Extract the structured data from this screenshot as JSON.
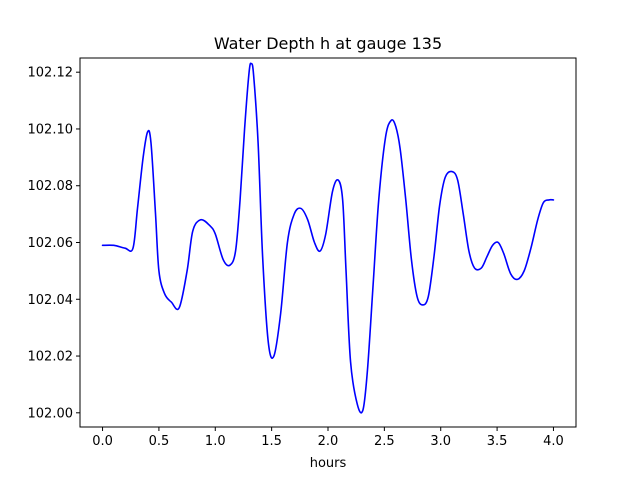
{
  "chart_data": {
    "type": "line",
    "title": "Water Depth h at gauge 135",
    "xlabel": "hours",
    "ylabel": "",
    "xlim": [
      -0.2,
      4.2
    ],
    "ylim": [
      101.995,
      102.125
    ],
    "xticks": [
      0.0,
      0.5,
      1.0,
      1.5,
      2.0,
      2.5,
      3.0,
      3.5,
      4.0
    ],
    "xtick_labels": [
      "0.0",
      "0.5",
      "1.0",
      "1.5",
      "2.0",
      "2.5",
      "3.0",
      "3.5",
      "4.0"
    ],
    "yticks": [
      102.0,
      102.02,
      102.04,
      102.06,
      102.08,
      102.1,
      102.12
    ],
    "ytick_labels": [
      "102.00",
      "102.02",
      "102.04",
      "102.06",
      "102.08",
      "102.10",
      "102.12"
    ],
    "grid": false,
    "series": [
      {
        "color": "#0000ff",
        "x": [
          0.0,
          0.1,
          0.2,
          0.27,
          0.31,
          0.36,
          0.4,
          0.43,
          0.47,
          0.5,
          0.55,
          0.61,
          0.68,
          0.75,
          0.8,
          0.87,
          0.95,
          1.0,
          1.07,
          1.13,
          1.18,
          1.22,
          1.26,
          1.3,
          1.32,
          1.34,
          1.38,
          1.42,
          1.47,
          1.52,
          1.58,
          1.64,
          1.7,
          1.76,
          1.82,
          1.88,
          1.93,
          1.98,
          2.04,
          2.09,
          2.13,
          2.16,
          2.2,
          2.26,
          2.31,
          2.35,
          2.4,
          2.45,
          2.51,
          2.56,
          2.6,
          2.64,
          2.69,
          2.74,
          2.79,
          2.84,
          2.89,
          2.94,
          2.99,
          3.04,
          3.1,
          3.15,
          3.2,
          3.25,
          3.3,
          3.36,
          3.41,
          3.46,
          3.51,
          3.56,
          3.62,
          3.68,
          3.74,
          3.8,
          3.86,
          3.91,
          3.96,
          4.0
        ],
        "y": [
          102.059,
          102.059,
          102.058,
          102.058,
          102.072,
          102.09,
          102.099,
          102.095,
          102.07,
          102.05,
          102.042,
          102.039,
          102.037,
          102.05,
          102.064,
          102.068,
          102.066,
          102.063,
          102.054,
          102.052,
          102.057,
          102.075,
          102.1,
          102.12,
          102.123,
          102.119,
          102.095,
          102.055,
          102.025,
          102.02,
          102.035,
          102.06,
          102.07,
          102.072,
          102.068,
          102.06,
          102.057,
          102.063,
          102.078,
          102.082,
          102.075,
          102.05,
          102.018,
          102.003,
          102.001,
          102.015,
          102.045,
          102.075,
          102.097,
          102.103,
          102.101,
          102.093,
          102.075,
          102.054,
          102.041,
          102.038,
          102.041,
          102.055,
          102.073,
          102.083,
          102.085,
          102.082,
          102.07,
          102.057,
          102.051,
          102.051,
          102.055,
          102.059,
          102.06,
          102.056,
          102.049,
          102.047,
          102.05,
          102.058,
          102.068,
          102.074,
          102.075,
          102.075
        ]
      }
    ]
  }
}
